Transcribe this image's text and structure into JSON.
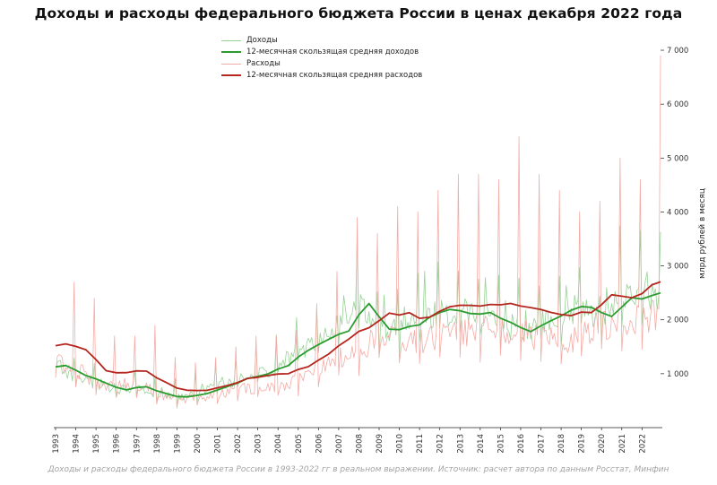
{
  "page": {
    "title": "Доходы и расходы федерального бюджета России в ценах декабря 2022 года",
    "footer": "Доходы и расходы федерального бюджета России в 1993-2022 гг в реальном выражении. Источник: расчет автора по данным Росстат, Минфин"
  },
  "chart_data": {
    "type": "line",
    "title": "Доходы и расходы федерального бюджета России в ценах декабря 2022 года",
    "caption": "Доходы и расходы федерального бюджета России в 1993-2022 гг в реальном выражении. Источник: расчет автора по данным Росстат, Минфин",
    "ylabel_right": "млрд рублей в месяц",
    "grid": false,
    "legend_position": "top-center",
    "ylim": [
      0,
      7200
    ],
    "yticks": [
      1000,
      2000,
      3000,
      4000,
      5000,
      6000,
      7000
    ],
    "ytick_labels": [
      "1 000",
      "2 000",
      "3 000",
      "4 000",
      "5 000",
      "6 000",
      "7 000"
    ],
    "x_years": [
      1993,
      1994,
      1995,
      1996,
      1997,
      1998,
      1999,
      2000,
      2001,
      2002,
      2003,
      2004,
      2005,
      2006,
      2007,
      2008,
      2009,
      2010,
      2011,
      2012,
      2013,
      2014,
      2015,
      2016,
      2017,
      2018,
      2019,
      2020,
      2021,
      2022
    ],
    "series": [
      {
        "name": "Доходы",
        "kind": "monthly",
        "role": "revenue",
        "color": "#97d297",
        "line_width": 0.8
      },
      {
        "name": "12-месячная скользящая средняя доходов",
        "kind": "moving_average",
        "role": "revenue",
        "color": "#2a9c2f",
        "line_width": 1.8,
        "values": [
          1150,
          950,
          820,
          700,
          760,
          620,
          560,
          640,
          760,
          900,
          980,
          1150,
          1420,
          1620,
          1800,
          2300,
          1850,
          1850,
          2050,
          2150,
          2100,
          2150,
          1950,
          1800,
          1950,
          2150,
          2250,
          2050,
          2400,
          2450
        ]
      },
      {
        "name": "Расходы",
        "kind": "monthly",
        "role": "expenditure",
        "color": "#f4aba6",
        "line_width": 0.8,
        "december_spike_values": [
          2700,
          2400,
          1700,
          1700,
          1900,
          1300,
          1200,
          1300,
          1500,
          1700,
          1700,
          1800,
          2300,
          2900,
          3900,
          3600,
          4100,
          4000,
          4400,
          4700,
          4700,
          4600,
          5400,
          4700,
          4400,
          4000,
          4200,
          5000,
          4600,
          6900
        ]
      },
      {
        "name": "12-месячная скользящая средняя расходов",
        "kind": "moving_average",
        "role": "expenditure",
        "color": "#b5271e",
        "line_width": 1.8,
        "values": [
          1550,
          1420,
          1050,
          1020,
          1050,
          820,
          680,
          700,
          780,
          900,
          950,
          1000,
          1120,
          1350,
          1650,
          1850,
          2150,
          2100,
          2050,
          2200,
          2250,
          2300,
          2300,
          2250,
          2100,
          2050,
          2150,
          2450,
          2400,
          2650
        ]
      }
    ]
  }
}
